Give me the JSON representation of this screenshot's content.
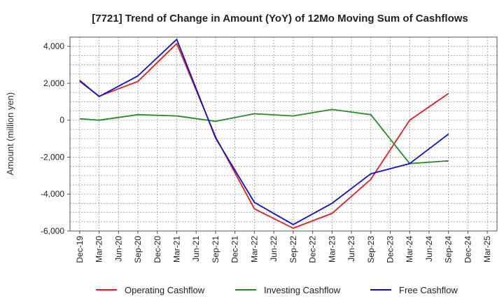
{
  "chart_data": {
    "type": "line",
    "title": "[7721]  Trend of Change in Amount (YoY) of 12Mo Moving Sum of Cashflows",
    "xlabel": "",
    "ylabel": "Amount (million yen)",
    "ylim": [
      -6000,
      4500
    ],
    "yticks": [
      4000,
      2000,
      0,
      -2000,
      -4000,
      -6000
    ],
    "ytick_labels": [
      "4,000",
      "2,000",
      "0",
      "-2,000",
      "-4,000",
      "-6,000"
    ],
    "categories": [
      "Dec-19",
      "Mar-20",
      "Jun-20",
      "Sep-20",
      "Dec-20",
      "Mar-21",
      "Jun-21",
      "Sep-21",
      "Dec-21",
      "Mar-22",
      "Jun-22",
      "Sep-22",
      "Dec-22",
      "Mar-23",
      "Jun-23",
      "Sep-23",
      "Dec-23",
      "Mar-24",
      "Jun-24",
      "Sep-24",
      "Dec-24",
      "Mar-25"
    ],
    "grid": true,
    "legend_position": "bottom",
    "series": [
      {
        "name": "Operating Cashflow",
        "color": "#e02020",
        "values": [
          2100,
          1300,
          null,
          2100,
          null,
          4150,
          null,
          -900,
          null,
          -4800,
          null,
          -5850,
          null,
          -5050,
          null,
          -3200,
          null,
          0,
          null,
          1450,
          null,
          null
        ]
      },
      {
        "name": "Investing Cashflow",
        "color": "#2a8a2a",
        "values": [
          80,
          0,
          null,
          300,
          null,
          230,
          null,
          -60,
          null,
          350,
          null,
          230,
          null,
          580,
          null,
          300,
          null,
          -2350,
          null,
          -2200,
          null,
          null
        ]
      },
      {
        "name": "Free Cashflow",
        "color": "#1010cc",
        "values": [
          2150,
          1280,
          null,
          2400,
          null,
          4380,
          null,
          -970,
          null,
          -4450,
          null,
          -5650,
          null,
          -4500,
          null,
          -2900,
          null,
          -2350,
          null,
          -750,
          null,
          null
        ]
      }
    ]
  }
}
